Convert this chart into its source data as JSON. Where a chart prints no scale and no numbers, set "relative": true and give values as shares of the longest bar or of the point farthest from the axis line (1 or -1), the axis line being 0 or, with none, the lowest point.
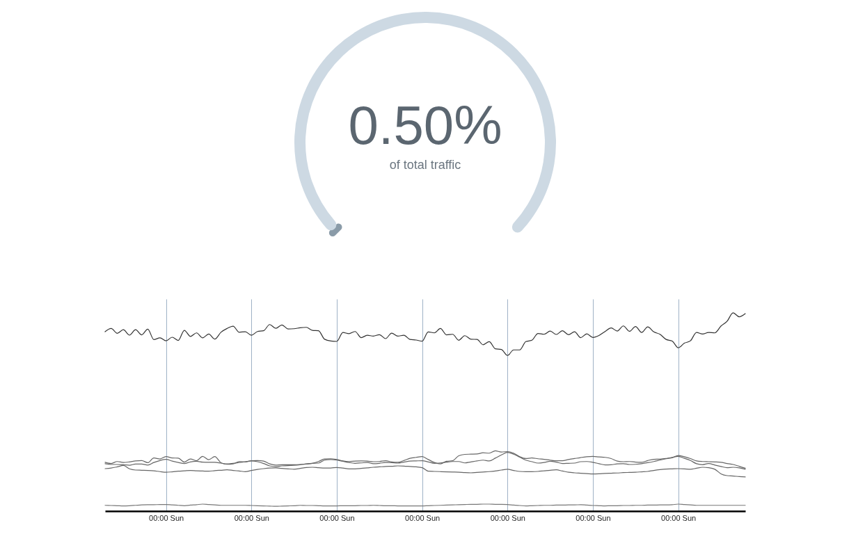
{
  "chart_data": [
    {
      "type": "donut",
      "title": "0.50%",
      "subtitle": "of total traffic",
      "categories": [
        null,
        null
      ],
      "values": [
        0.5,
        99.5
      ],
      "colors": [
        "#8a9ba8",
        "#cdd9e3"
      ]
    },
    {
      "type": "line",
      "relative": true,
      "grid": "x",
      "categories": [
        null,
        null,
        null,
        null,
        null,
        null,
        null,
        null,
        null,
        null,
        "00:00 Sun",
        null,
        null,
        null,
        null,
        null,
        null,
        null,
        null,
        null,
        null,
        null,
        null,
        null,
        "00:00 Sun",
        null,
        null,
        null,
        null,
        null,
        null,
        null,
        null,
        null,
        null,
        null,
        null,
        null,
        "00:00 Sun",
        null,
        null,
        null,
        null,
        null,
        null,
        null,
        null,
        null,
        null,
        null,
        null,
        null,
        "00:00 Sun",
        null,
        null,
        null,
        null,
        null,
        null,
        null,
        null,
        null,
        null,
        null,
        null,
        null,
        "00:00 Sun",
        null,
        null,
        null,
        null,
        null,
        null,
        null,
        null,
        null,
        null,
        null,
        null,
        null,
        "00:00 Sun",
        null,
        null,
        null,
        null,
        null,
        null,
        null,
        null,
        null,
        null,
        null,
        null,
        null,
        "00:00 Sun",
        null,
        null,
        null,
        null,
        null,
        null,
        null,
        null,
        null,
        null,
        null
      ],
      "series": [
        {
          "color": "#333333",
          "values": [
            0.905,
            0.921,
            0.897,
            0.915,
            0.888,
            0.915,
            0.889,
            0.918,
            0.865,
            0.874,
            0.859,
            0.877,
            0.861,
            0.912,
            0.881,
            0.899,
            0.874,
            0.893,
            0.868,
            0.902,
            0.921,
            0.933,
            0.902,
            0.905,
            0.887,
            0.906,
            0.91,
            0.941,
            0.922,
            0.939,
            0.919,
            0.92,
            0.925,
            0.927,
            0.912,
            0.91,
            0.867,
            0.858,
            0.856,
            0.901,
            0.895,
            0.906,
            0.875,
            0.887,
            0.883,
            0.89,
            0.87,
            0.898,
            0.883,
            0.887,
            0.866,
            0.863,
            0.857,
            0.904,
            0.899,
            0.921,
            0.889,
            0.892,
            0.862,
            0.885,
            0.867,
            0.866,
            0.839,
            0.855,
            0.819,
            0.815,
            0.785,
            0.813,
            0.813,
            0.855,
            0.862,
            0.896,
            0.892,
            0.908,
            0.891,
            0.91,
            0.89,
            0.905,
            0.875,
            0.894,
            0.876,
            0.886,
            0.906,
            0.924,
            0.908,
            0.934,
            0.907,
            0.931,
            0.901,
            0.929,
            0.904,
            0.892,
            0.866,
            0.858,
            0.824,
            0.847,
            0.859,
            0.901,
            0.893,
            0.901,
            0.899,
            0.933,
            0.957,
            1.0,
            0.98,
            0.996
          ]
        },
        {
          "color": "#666666",
          "values": [
            0.246,
            0.24,
            0.25,
            0.245,
            0.248,
            0.253,
            0.255,
            0.244,
            0.268,
            0.263,
            0.275,
            0.268,
            0.267,
            0.247,
            0.263,
            0.254,
            0.276,
            0.259,
            0.275,
            0.244,
            0.236,
            0.238,
            0.25,
            0.248,
            0.254,
            0.255,
            0.252,
            0.238,
            0.232,
            0.234,
            0.234,
            0.234,
            0.235,
            0.237,
            0.241,
            0.25,
            0.263,
            0.264,
            0.26,
            0.253,
            0.25,
            0.252,
            0.253,
            0.252,
            0.249,
            0.25,
            0.254,
            0.248,
            0.246,
            0.255,
            0.266,
            0.271,
            0.275,
            0.26,
            0.245,
            0.238,
            0.251,
            0.254,
            0.279,
            0.286,
            0.287,
            0.288,
            0.294,
            0.292,
            0.304,
            0.298,
            0.3,
            0.292,
            0.274,
            0.265,
            0.268,
            0.264,
            0.261,
            0.257,
            0.254,
            0.254,
            0.26,
            0.265,
            0.27,
            0.274,
            0.276,
            0.273,
            0.271,
            0.265,
            0.252,
            0.249,
            0.25,
            0.247,
            0.246,
            0.255,
            0.261,
            0.262,
            0.265,
            0.269,
            0.28,
            0.274,
            0.265,
            0.253,
            0.25,
            0.249,
            0.248,
            0.246,
            0.24,
            0.235,
            0.226,
            0.216
          ]
        },
        {
          "color": "#666666",
          "values": [
            0.239,
            0.235,
            0.235,
            0.234,
            0.231,
            0.237,
            0.237,
            0.232,
            0.245,
            0.255,
            0.261,
            0.252,
            0.245,
            0.24,
            0.248,
            0.251,
            0.247,
            0.246,
            0.246,
            0.242,
            0.238,
            0.241,
            0.245,
            0.249,
            0.253,
            0.249,
            0.24,
            0.228,
            0.224,
            0.228,
            0.229,
            0.231,
            0.234,
            0.238,
            0.241,
            0.242,
            0.257,
            0.26,
            0.257,
            0.251,
            0.245,
            0.241,
            0.243,
            0.245,
            0.239,
            0.241,
            0.245,
            0.244,
            0.242,
            0.247,
            0.252,
            0.253,
            0.254,
            0.248,
            0.241,
            0.243,
            0.247,
            0.25,
            0.25,
            0.243,
            0.248,
            0.253,
            0.257,
            0.253,
            0.267,
            0.283,
            0.296,
            0.287,
            0.272,
            0.257,
            0.249,
            0.242,
            0.245,
            0.251,
            0.247,
            0.24,
            0.241,
            0.242,
            0.249,
            0.25,
            0.246,
            0.239,
            0.233,
            0.234,
            0.238,
            0.239,
            0.235,
            0.236,
            0.239,
            0.244,
            0.25,
            0.257,
            0.264,
            0.271,
            0.276,
            0.266,
            0.255,
            0.239,
            0.234,
            0.24,
            0.232,
            0.225,
            0.219,
            0.221,
            0.218,
            0.211
          ]
        },
        {
          "color": "#666666",
          "values": [
            0.214,
            0.217,
            0.223,
            0.23,
            0.213,
            0.207,
            0.206,
            0.205,
            0.203,
            0.199,
            0.196,
            0.198,
            0.201,
            0.203,
            0.205,
            0.203,
            0.202,
            0.201,
            0.204,
            0.206,
            0.208,
            0.205,
            0.202,
            0.199,
            0.205,
            0.21,
            0.214,
            0.217,
            0.218,
            0.215,
            0.213,
            0.211,
            0.215,
            0.22,
            0.221,
            0.219,
            0.217,
            0.217,
            0.22,
            0.217,
            0.213,
            0.213,
            0.215,
            0.218,
            0.221,
            0.223,
            0.225,
            0.226,
            0.228,
            0.227,
            0.225,
            0.223,
            0.219,
            0.201,
            0.2,
            0.199,
            0.198,
            0.197,
            0.196,
            0.194,
            0.193,
            0.195,
            0.197,
            0.199,
            0.202,
            0.207,
            0.211,
            0.205,
            0.2,
            0.199,
            0.199,
            0.2,
            0.203,
            0.206,
            0.208,
            0.202,
            0.196,
            0.193,
            0.191,
            0.189,
            0.187,
            0.188,
            0.19,
            0.191,
            0.192,
            0.194,
            0.195,
            0.196,
            0.198,
            0.2,
            0.205,
            0.209,
            0.212,
            0.213,
            0.214,
            0.213,
            0.211,
            0.216,
            0.221,
            0.219,
            0.211,
            0.188,
            0.179,
            0.177,
            0.174,
            0.172
          ]
        },
        {
          "color": "#777777",
          "values": [
            0.029,
            0.028,
            0.027,
            0.026,
            0.027,
            0.029,
            0.031,
            0.032,
            0.032,
            0.033,
            0.033,
            0.031,
            0.029,
            0.027,
            0.03,
            0.032,
            0.035,
            0.033,
            0.031,
            0.029,
            0.029,
            0.029,
            0.029,
            0.029,
            0.028,
            0.027,
            0.026,
            0.025,
            0.024,
            0.025,
            0.026,
            0.027,
            0.029,
            0.028,
            0.028,
            0.027,
            0.026,
            0.026,
            0.026,
            0.027,
            0.027,
            0.027,
            0.028,
            0.028,
            0.029,
            0.028,
            0.027,
            0.027,
            0.026,
            0.026,
            0.026,
            0.026,
            0.026,
            0.027,
            0.028,
            0.029,
            0.03,
            0.031,
            0.032,
            0.033,
            0.034,
            0.034,
            0.035,
            0.035,
            0.034,
            0.034,
            0.033,
            0.03,
            0.028,
            0.026,
            0.027,
            0.028,
            0.029,
            0.029,
            0.03,
            0.03,
            0.031,
            0.031,
            0.032,
            0.03,
            0.028,
            0.027,
            0.026,
            0.027,
            0.027,
            0.028,
            0.028,
            0.029,
            0.029,
            0.03,
            0.03,
            0.031,
            0.031,
            0.032,
            0.035,
            0.033,
            0.031,
            0.029,
            0.029,
            0.029,
            0.029,
            0.029,
            0.029,
            0.029,
            0.029,
            0.029
          ]
        }
      ]
    }
  ]
}
